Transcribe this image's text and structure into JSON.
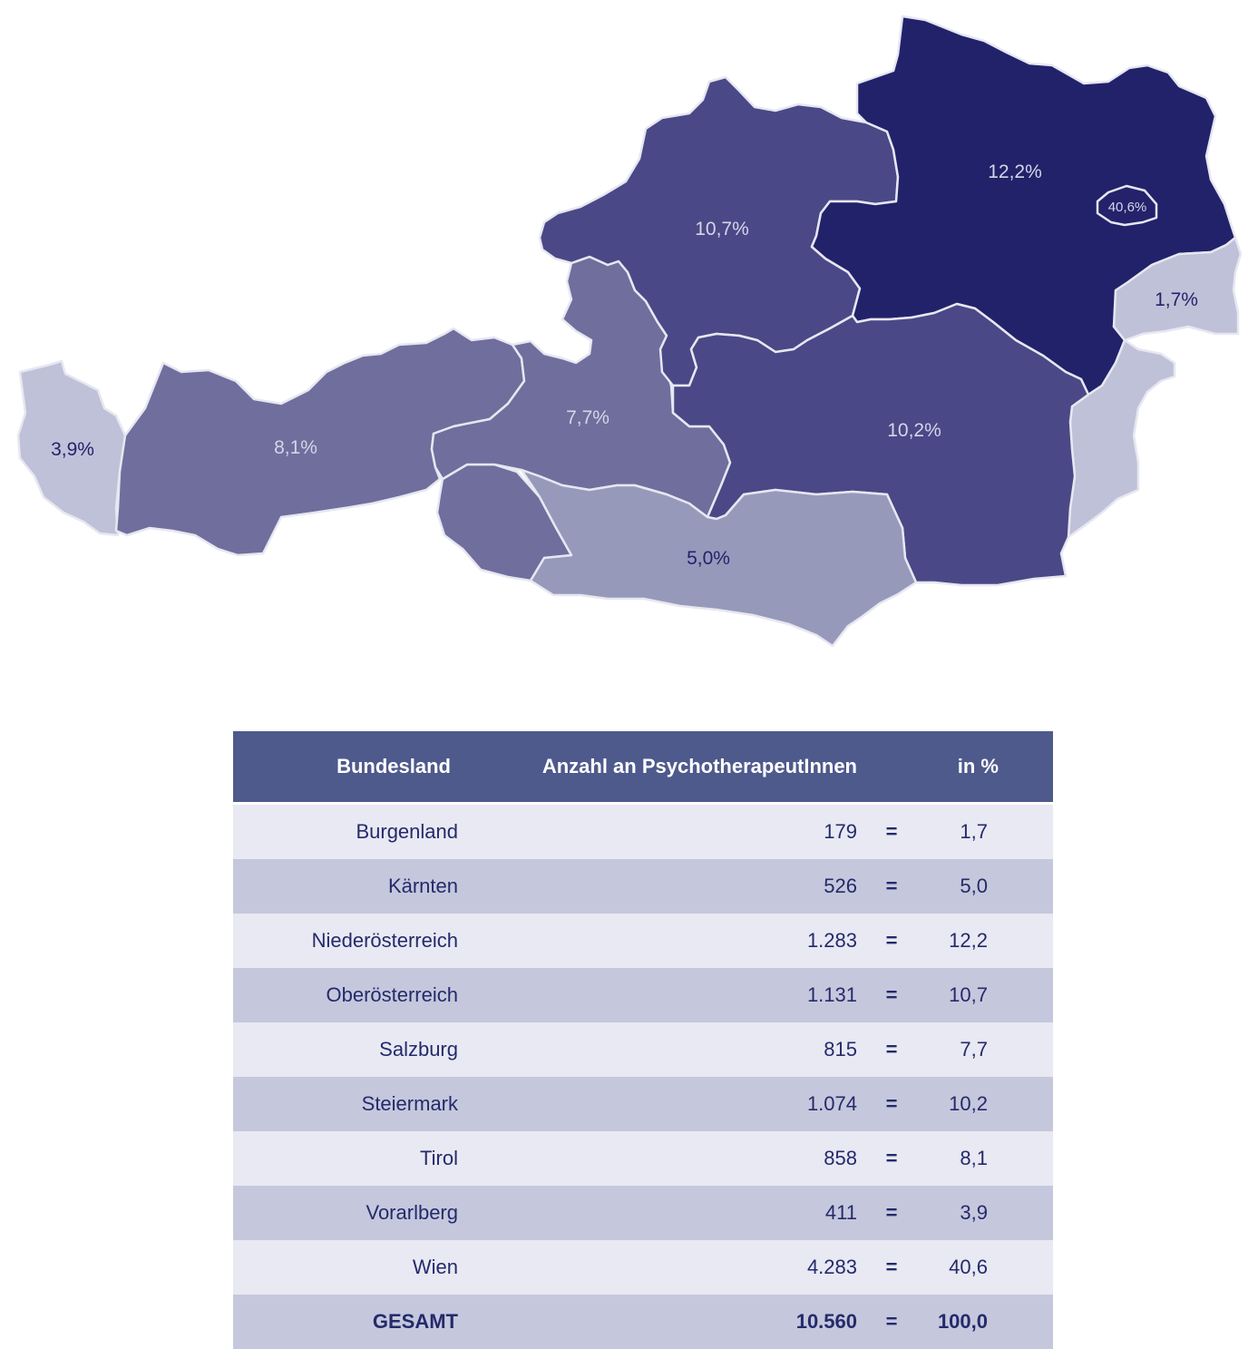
{
  "colors": {
    "wien": "#23226b",
    "niederoesterreich": "#22226a",
    "oberoesterreich": "#4a4886",
    "steiermark": "#4a4886",
    "salzburg": "#6f6e9d",
    "tirol": "#6f6e9d",
    "osttirol": "#6f6e9d",
    "kaernten": "#9799bb",
    "vorarlberg": "#bfc1d8",
    "burgenland": "#bfc1d8",
    "border": "#e6e7f1",
    "label_light": "#d4d6e8",
    "label_dark": "#23226b",
    "table_header": "#4e5a8c",
    "row_light": "#e8e9f2",
    "row_dark": "#c5c8dc",
    "text": "#242a6b"
  },
  "map": {
    "labels": {
      "vorarlberg": "3,9%",
      "tirol": "8,1%",
      "salzburg": "7,7%",
      "oberoesterreich": "10,7%",
      "niederoesterreich": "12,2%",
      "wien": "40,6%",
      "burgenland": "1,7%",
      "steiermark": "10,2%",
      "kaernten": "5,0%"
    }
  },
  "table": {
    "headers": {
      "state": "Bundesland",
      "count": "Anzahl an PsychotherapeutInnen",
      "pct": "in %"
    },
    "rows": [
      {
        "state": "Burgenland",
        "count": "179",
        "eq": "=",
        "pct": "1,7"
      },
      {
        "state": "Kärnten",
        "count": "526",
        "eq": "=",
        "pct": "5,0"
      },
      {
        "state": "Niederösterreich",
        "count": "1.283",
        "eq": "=",
        "pct": "12,2"
      },
      {
        "state": "Oberösterreich",
        "count": "1.131",
        "eq": "=",
        "pct": "10,7"
      },
      {
        "state": "Salzburg",
        "count": "815",
        "eq": "=",
        "pct": "7,7"
      },
      {
        "state": "Steiermark",
        "count": "1.074",
        "eq": "=",
        "pct": "10,2"
      },
      {
        "state": "Tirol",
        "count": "858",
        "eq": "=",
        "pct": "8,1"
      },
      {
        "state": "Vorarlberg",
        "count": "411",
        "eq": "=",
        "pct": "3,9"
      },
      {
        "state": "Wien",
        "count": "4.283",
        "eq": "=",
        "pct": "40,6"
      }
    ],
    "total": {
      "state": "GESAMT",
      "count": "10.560",
      "eq": "=",
      "pct": "100,0"
    }
  }
}
